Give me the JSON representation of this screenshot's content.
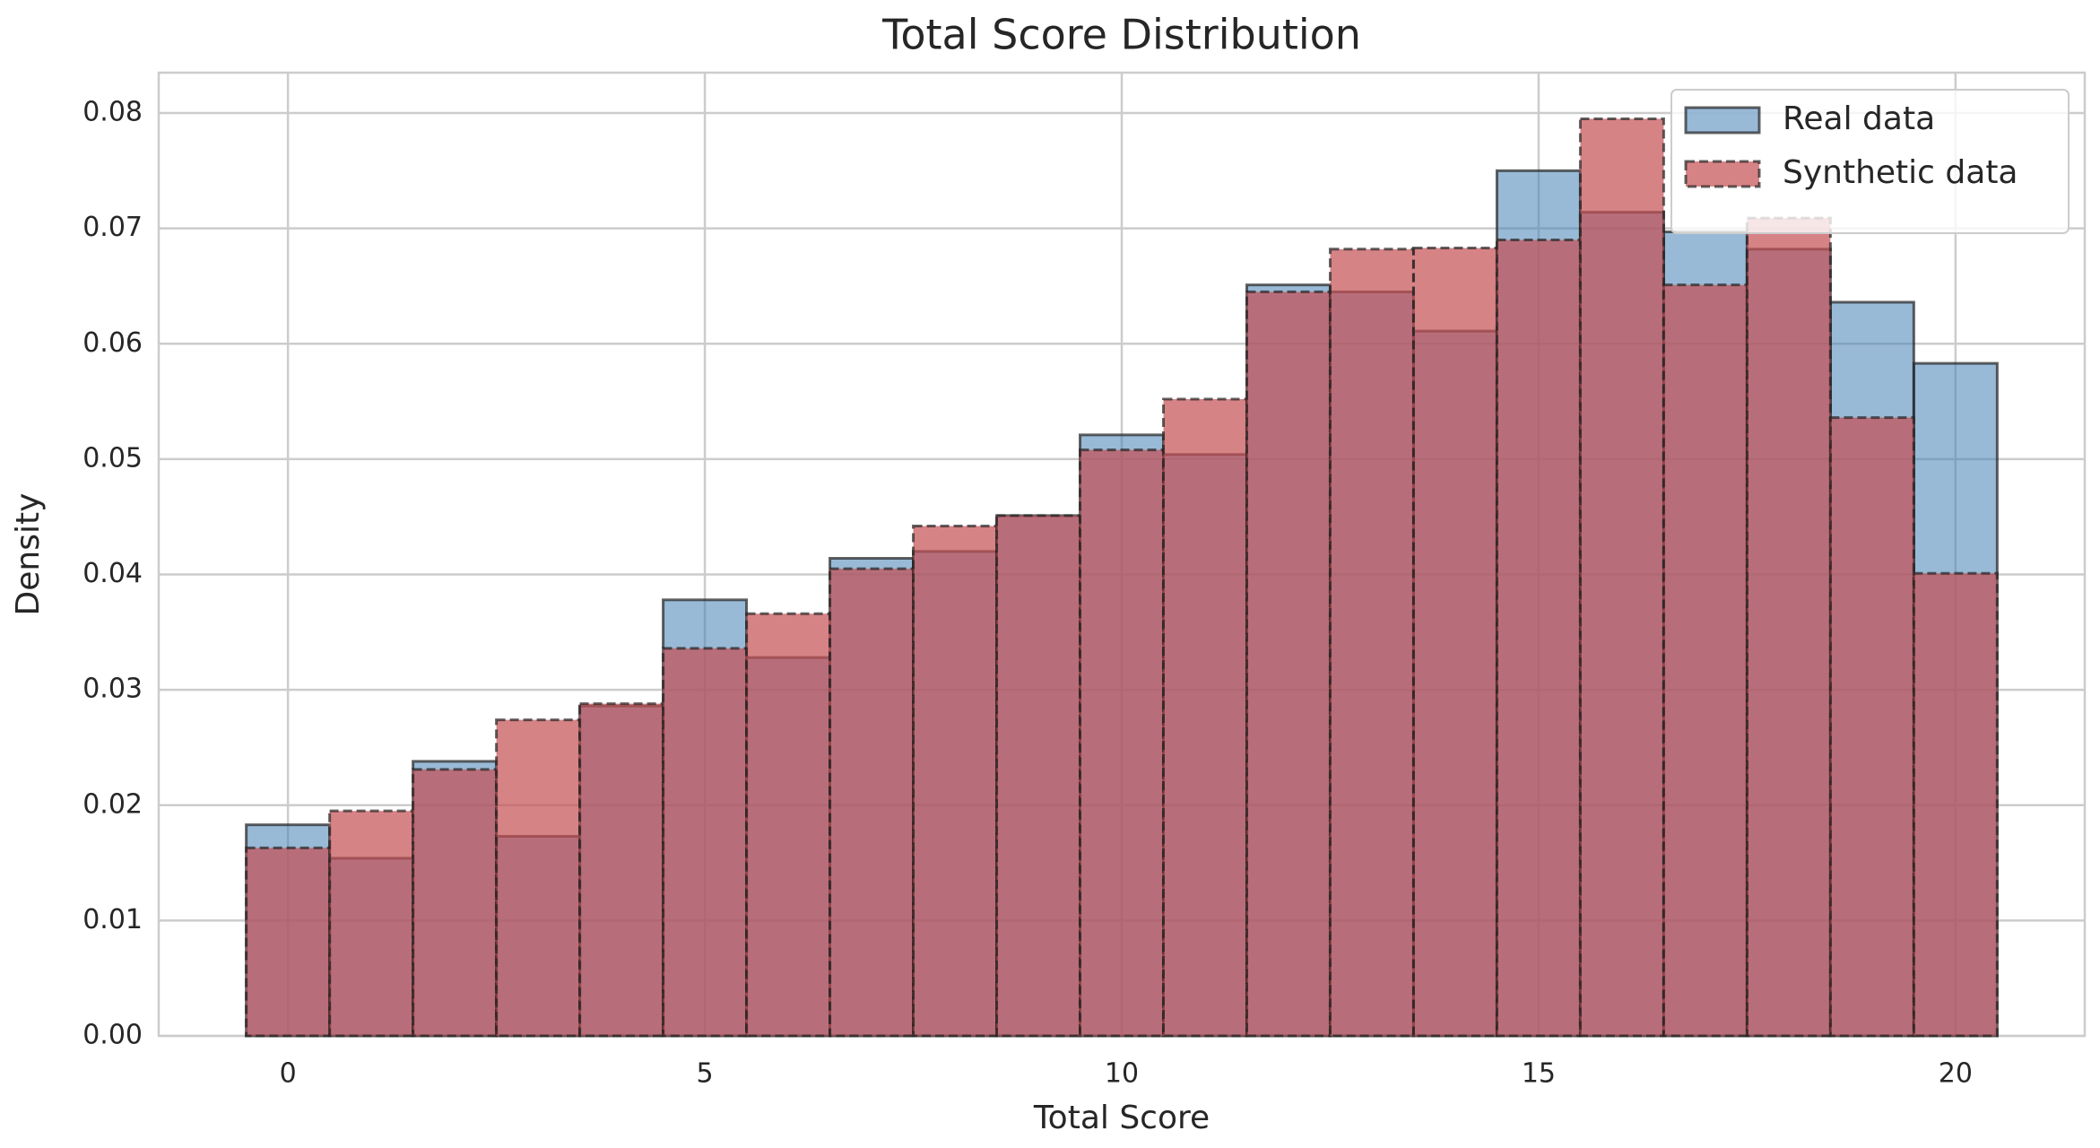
{
  "chart_data": {
    "type": "histogram",
    "title": "Total Score Distribution",
    "x_label": "Total Score",
    "y_label": "Density",
    "bins": [
      -0.5,
      0.5,
      1.5,
      2.5,
      3.5,
      4.5,
      5.5,
      6.5,
      7.5,
      8.5,
      9.5,
      10.5,
      11.5,
      12.5,
      13.5,
      14.5,
      15.5,
      16.5,
      17.5,
      18.5,
      19.5,
      20.5
    ],
    "series": [
      {
        "name": "Real data",
        "color": "#4682b4",
        "opacity": 0.55,
        "linestyle": "solid",
        "values": [
          0.0183,
          0.0154,
          0.0238,
          0.0173,
          0.0286,
          0.0378,
          0.0328,
          0.0414,
          0.042,
          0.0451,
          0.0521,
          0.0504,
          0.0651,
          0.0645,
          0.0611,
          0.075,
          0.0714,
          0.0697,
          0.0682,
          0.0636,
          0.0583
        ]
      },
      {
        "name": "Synthetic data",
        "color": "#c44e52",
        "opacity": 0.7,
        "linestyle": "dashed",
        "values": [
          0.0163,
          0.0195,
          0.0231,
          0.0274,
          0.0288,
          0.0336,
          0.0366,
          0.0405,
          0.0442,
          0.0451,
          0.0508,
          0.0552,
          0.0645,
          0.0682,
          0.0683,
          0.069,
          0.0795,
          0.0651,
          0.0709,
          0.0536,
          0.0401
        ]
      }
    ],
    "xlim": [
      -1.55,
      21.55
    ],
    "xticks": [
      0,
      5,
      10,
      15,
      20
    ],
    "ylim": [
      0,
      0.0835
    ],
    "yticks": [
      {
        "value": 0,
        "label": "0.00"
      },
      0.01,
      0.02,
      0.03,
      0.04,
      0.05,
      0.06,
      0.07,
      0.08
    ],
    "grid": true,
    "legend": "upper right"
  }
}
